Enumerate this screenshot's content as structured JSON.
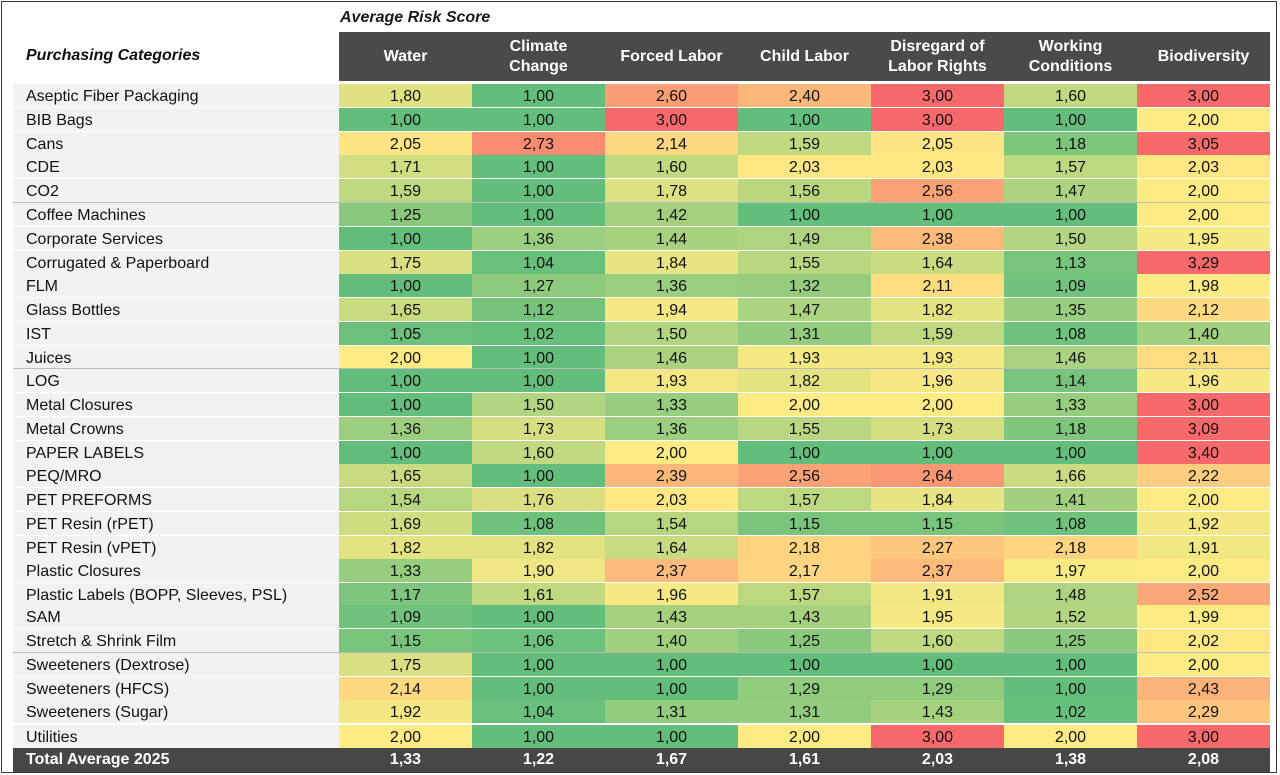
{
  "chart_data": {
    "type": "heatmap",
    "title": "Average Risk Score",
    "row_header": "Purchasing Categories",
    "columns": [
      "Water",
      "Climate Change",
      "Forced Labor",
      "Child Labor",
      "Disregard of Labor Rights",
      "Working Conditions",
      "Biodiversity"
    ],
    "rows": [
      {
        "label": "Aseptic Fiber Packaging",
        "values": [
          "1,80",
          "1,00",
          "2,60",
          "2,40",
          "3,00",
          "1,60",
          "3,00"
        ]
      },
      {
        "label": "BIB Bags",
        "values": [
          "1,00",
          "1,00",
          "3,00",
          "1,00",
          "3,00",
          "1,00",
          "2,00"
        ]
      },
      {
        "label": "Cans",
        "values": [
          "2,05",
          "2,73",
          "2,14",
          "1,59",
          "2,05",
          "1,18",
          "3,05"
        ]
      },
      {
        "label": "CDE",
        "values": [
          "1,71",
          "1,00",
          "1,60",
          "2,03",
          "2,03",
          "1,57",
          "2,03"
        ]
      },
      {
        "label": "CO2",
        "values": [
          "1,59",
          "1,00",
          "1,78",
          "1,56",
          "2,56",
          "1,47",
          "2,00"
        ]
      },
      {
        "label": "Coffee Machines",
        "values": [
          "1,25",
          "1,00",
          "1,42",
          "1,00",
          "1,00",
          "1,00",
          "2,00"
        ]
      },
      {
        "label": "Corporate Services",
        "values": [
          "1,00",
          "1,36",
          "1,44",
          "1,49",
          "2,38",
          "1,50",
          "1,95"
        ]
      },
      {
        "label": "Corrugated & Paperboard",
        "values": [
          "1,75",
          "1,04",
          "1,84",
          "1,55",
          "1,64",
          "1,13",
          "3,29"
        ]
      },
      {
        "label": "FLM",
        "values": [
          "1,00",
          "1,27",
          "1,36",
          "1,32",
          "2,11",
          "1,09",
          "1,98"
        ]
      },
      {
        "label": "Glass Bottles",
        "values": [
          "1,65",
          "1,12",
          "1,94",
          "1,47",
          "1,82",
          "1,35",
          "2,12"
        ]
      },
      {
        "label": "IST",
        "values": [
          "1,05",
          "1,02",
          "1,50",
          "1,31",
          "1,59",
          "1,08",
          "1,40"
        ]
      },
      {
        "label": "Juices",
        "values": [
          "2,00",
          "1,00",
          "1,46",
          "1,93",
          "1,93",
          "1,46",
          "2,11"
        ]
      },
      {
        "label": "LOG",
        "values": [
          "1,00",
          "1,00",
          "1,93",
          "1,82",
          "1,96",
          "1,14",
          "1,96"
        ]
      },
      {
        "label": "Metal Closures",
        "values": [
          "1,00",
          "1,50",
          "1,33",
          "2,00",
          "2,00",
          "1,33",
          "3,00"
        ]
      },
      {
        "label": "Metal Crowns",
        "values": [
          "1,36",
          "1,73",
          "1,36",
          "1,55",
          "1,73",
          "1,18",
          "3,09"
        ]
      },
      {
        "label": "PAPER LABELS",
        "values": [
          "1,00",
          "1,60",
          "2,00",
          "1,00",
          "1,00",
          "1,00",
          "3,40"
        ]
      },
      {
        "label": "PEQ/MRO",
        "values": [
          "1,65",
          "1,00",
          "2,39",
          "2,56",
          "2,64",
          "1,66",
          "2,22"
        ]
      },
      {
        "label": "PET PREFORMS",
        "values": [
          "1,54",
          "1,76",
          "2,03",
          "1,57",
          "1,84",
          "1,41",
          "2,00"
        ]
      },
      {
        "label": "PET Resin (rPET)",
        "values": [
          "1,69",
          "1,08",
          "1,54",
          "1,15",
          "1,15",
          "1,08",
          "1,92"
        ]
      },
      {
        "label": "PET Resin (vPET)",
        "values": [
          "1,82",
          "1,82",
          "1,64",
          "2,18",
          "2,27",
          "2,18",
          "1,91"
        ]
      },
      {
        "label": "Plastic Closures",
        "values": [
          "1,33",
          "1,90",
          "2,37",
          "2,17",
          "2,37",
          "1,97",
          "2,00"
        ]
      },
      {
        "label": "Plastic Labels (BOPP, Sleeves, PSL)",
        "values": [
          "1,17",
          "1,61",
          "1,96",
          "1,57",
          "1,91",
          "1,48",
          "2,52"
        ]
      },
      {
        "label": "SAM",
        "values": [
          "1,09",
          "1,00",
          "1,43",
          "1,43",
          "1,95",
          "1,52",
          "1,99"
        ]
      },
      {
        "label": "Stretch & Shrink Film",
        "values": [
          "1,15",
          "1,06",
          "1,40",
          "1,25",
          "1,60",
          "1,25",
          "2,02"
        ]
      },
      {
        "label": "Sweeteners (Dextrose)",
        "values": [
          "1,75",
          "1,00",
          "1,00",
          "1,00",
          "1,00",
          "1,00",
          "2,00"
        ]
      },
      {
        "label": "Sweeteners (HFCS)",
        "values": [
          "2,14",
          "1,00",
          "1,00",
          "1,29",
          "1,29",
          "1,00",
          "2,43"
        ]
      },
      {
        "label": "Sweeteners (Sugar)",
        "values": [
          "1,92",
          "1,04",
          "1,31",
          "1,31",
          "1,43",
          "1,02",
          "2,29"
        ]
      },
      {
        "label": "Utilities",
        "values": [
          "2,00",
          "1,00",
          "1,00",
          "2,00",
          "3,00",
          "2,00",
          "3,00"
        ]
      }
    ],
    "total": {
      "label": "Total Average 2025",
      "values": [
        "1,33",
        "1,22",
        "1,67",
        "1,61",
        "2,03",
        "1,38",
        "2,08"
      ]
    },
    "color_scale": {
      "low": "#63be7b",
      "mid": "#ffeb84",
      "high": "#f8696b"
    }
  }
}
